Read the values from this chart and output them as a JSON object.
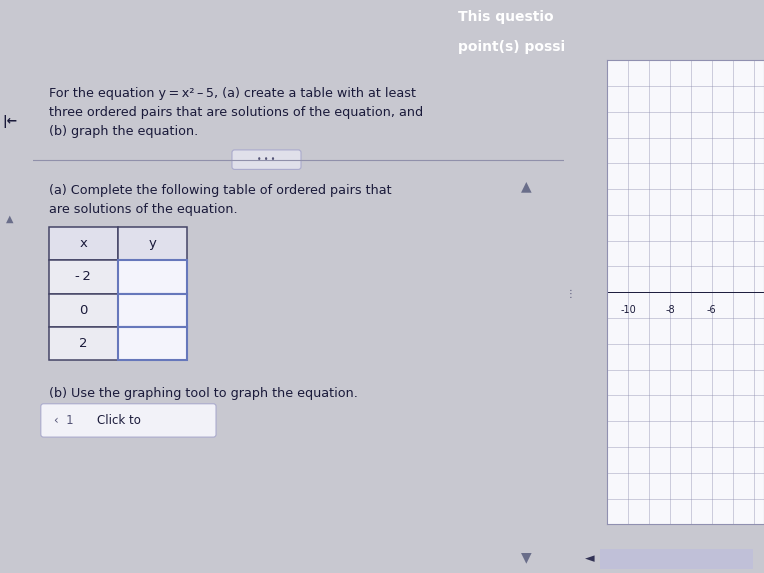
{
  "bg_color": "#c8c8d0",
  "header_bg": "#993344",
  "header_text1": "This questio",
  "header_text2": "point(s) possi",
  "main_panel_bg": "#f0f0f4",
  "left_bar_color": "#6a6e8a",
  "question_line1": "For the equation y = x² – 5, (a) create a table with at least",
  "question_line2": "three ordered pairs that are solutions of the equation, and",
  "question_line3": "(b) graph the equation.",
  "part_a_line1": "(a) Complete the following table of ordered pairs that",
  "part_a_line2": "are solutions of the equation.",
  "part_b_text": "(b) Use the graphing tool to graph the equation.",
  "click_label": "Click to",
  "table_x_vals": [
    "- 2",
    "0",
    "2"
  ],
  "grid_bg": "#f8f8fc",
  "grid_line_color": "#9090b0",
  "text_color": "#1a1a3a",
  "scrollbar_color": "#7a7a9a",
  "separator_color": "#9090aa",
  "dots_bg": "#e0e0ea"
}
